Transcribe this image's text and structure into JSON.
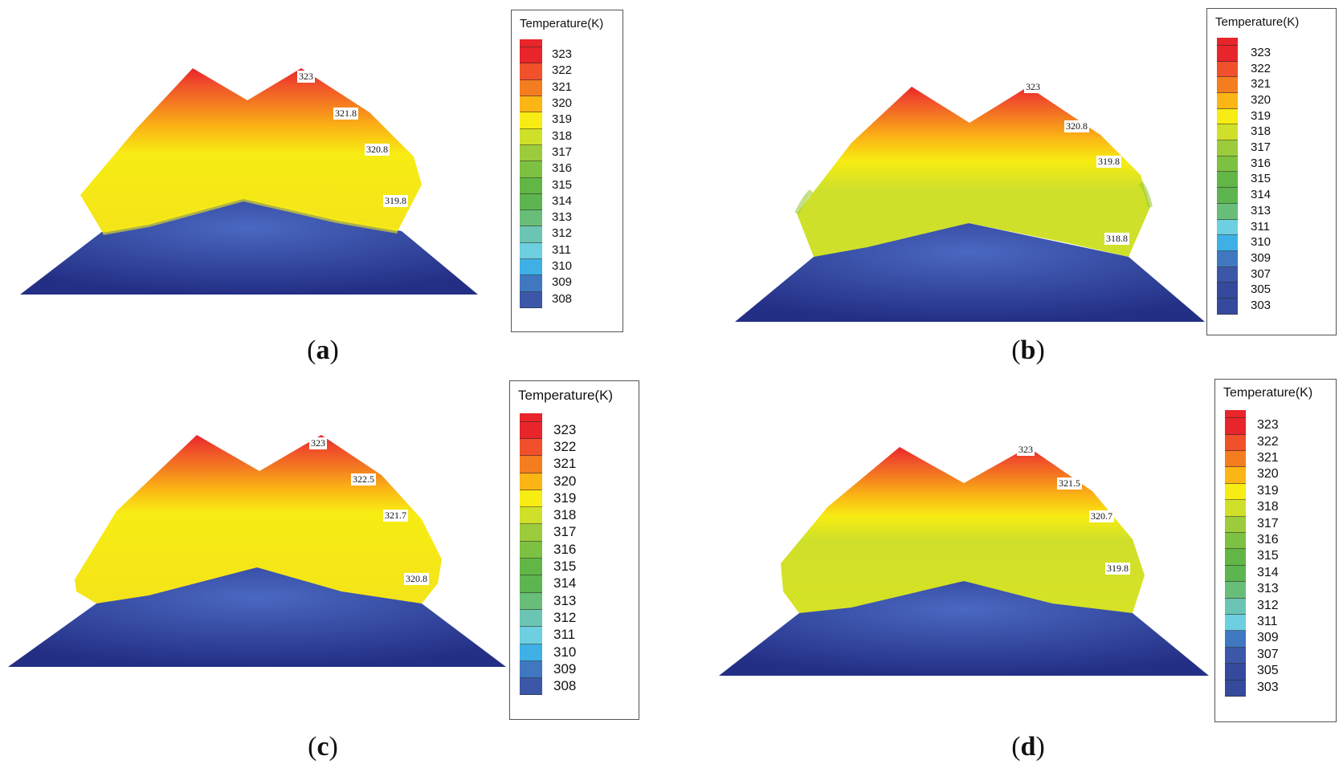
{
  "figure": {
    "panels": [
      {
        "id": "a",
        "caption": "a",
        "legend": {
          "title": "Temperature(K)",
          "levels": [
            "323",
            "322",
            "321",
            "320",
            "319",
            "318",
            "317",
            "316",
            "315",
            "314",
            "313",
            "312",
            "311",
            "310",
            "309",
            "308"
          ]
        },
        "probes": [
          "323",
          "321.8",
          "320.8",
          "319.8"
        ],
        "regime": "warm"
      },
      {
        "id": "b",
        "caption": "b",
        "legend": {
          "title": "Temperature(K)",
          "levels": [
            "323",
            "322",
            "321",
            "320",
            "319",
            "318",
            "317",
            "316",
            "315",
            "314",
            "313",
            "311",
            "310",
            "309",
            "307",
            "305",
            "303"
          ]
        },
        "probes": [
          "323",
          "320.8",
          "319.8",
          "318.8"
        ],
        "regime": "cool"
      },
      {
        "id": "c",
        "caption": "c",
        "legend": {
          "title": "Temperature(K)",
          "levels": [
            "323",
            "322",
            "321",
            "320",
            "319",
            "318",
            "317",
            "316",
            "315",
            "314",
            "313",
            "312",
            "311",
            "310",
            "309",
            "308"
          ]
        },
        "probes": [
          "323",
          "322.5",
          "321.7",
          "320.8"
        ],
        "regime": "warm"
      },
      {
        "id": "d",
        "caption": "d",
        "legend": {
          "title": "Temperature(K)",
          "levels": [
            "323",
            "322",
            "321",
            "320",
            "319",
            "318",
            "317",
            "316",
            "315",
            "314",
            "313",
            "312",
            "311",
            "309",
            "307",
            "305",
            "303"
          ]
        },
        "probes": [
          "323",
          "321.5",
          "320.7",
          "319.8"
        ],
        "regime": "cool"
      }
    ],
    "colors": {
      "c323": "#e8252b",
      "c322": "#f0502a",
      "c321": "#f47d20",
      "c320": "#fbb515",
      "c319": "#f7ec13",
      "c318": "#cfe02a",
      "c317": "#9ccb3b",
      "c316": "#7cc142",
      "c315": "#61b646",
      "c314": "#5db550",
      "c313": "#68bd79",
      "c312": "#6cc5b4",
      "c311": "#6dcfe0",
      "c310": "#3fb0e6",
      "c309": "#3f78c0",
      "c308": "#3d57a8",
      "base_light": "#3d5fb6",
      "base_dark": "#1f2a7a"
    }
  }
}
